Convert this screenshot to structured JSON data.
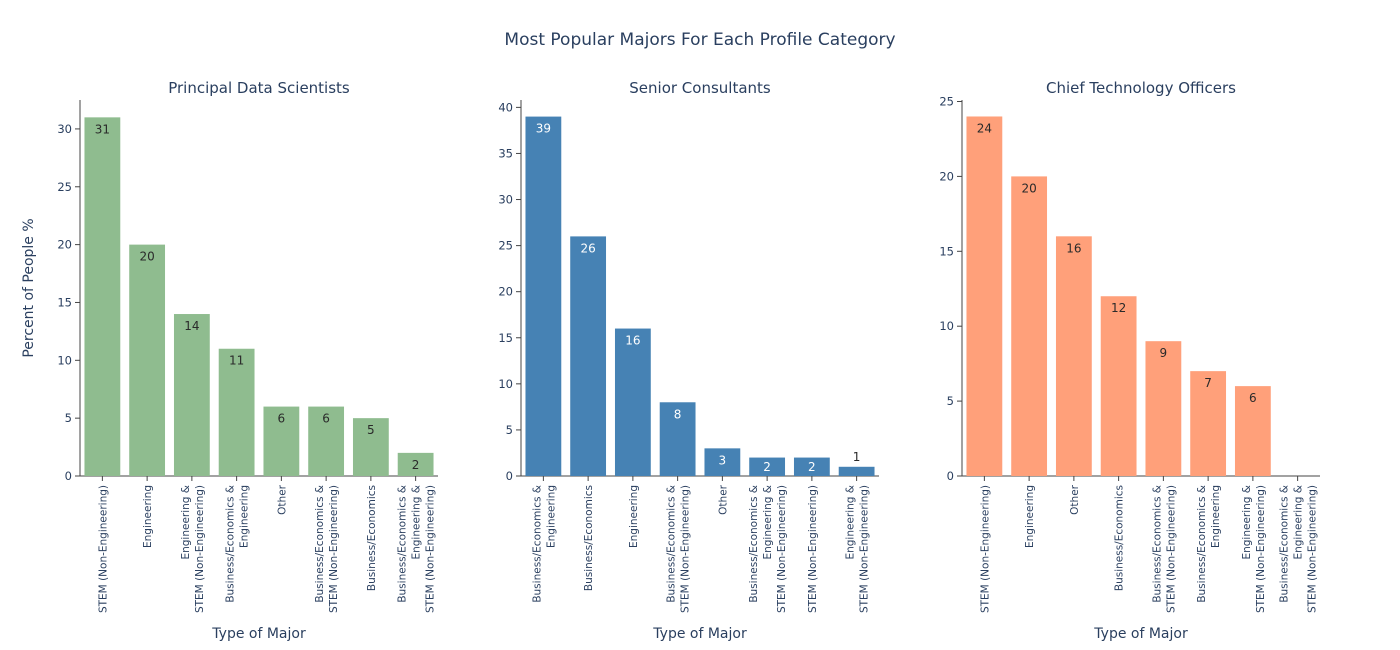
{
  "figure_title": "Most Popular Majors For Each Profile Category",
  "y_axis_label": "Percent of People %",
  "chart_data": [
    {
      "type": "bar",
      "title": "Principal Data Scientists",
      "xlabel": "Type of Major",
      "ylabel": "Percent of People %",
      "color": "#8fbc8f",
      "label_color": "#2a2a2a",
      "ylim": [
        0,
        32.5
      ],
      "yticks": [
        0,
        5,
        10,
        15,
        20,
        25,
        30
      ],
      "categories": [
        [
          "STEM (Non-Engineering)"
        ],
        [
          "Engineering"
        ],
        [
          "Engineering &",
          "STEM (Non-Engineering)"
        ],
        [
          "Business/Economics &",
          "Engineering"
        ],
        [
          "Other"
        ],
        [
          "Business/Economics &",
          "STEM (Non-Engineering)"
        ],
        [
          "Business/Economics"
        ],
        [
          "Business/Economics &",
          "Engineering &",
          "STEM (Non-Engineering)"
        ]
      ],
      "values": [
        31,
        20,
        14,
        11,
        6,
        6,
        5,
        2
      ],
      "labels": [
        "31",
        "20",
        "14",
        "11",
        "6",
        "6",
        "5",
        "2"
      ]
    },
    {
      "type": "bar",
      "title": "Senior Consultants",
      "xlabel": "Type of Major",
      "ylabel": "",
      "color": "#4682b4",
      "label_color": "#ffffff",
      "ylim": [
        0,
        40.8
      ],
      "yticks": [
        0,
        5,
        10,
        15,
        20,
        25,
        30,
        35,
        40
      ],
      "categories": [
        [
          "Business/Economics &",
          "Engineering"
        ],
        [
          "Business/Economics"
        ],
        [
          "Engineering"
        ],
        [
          "Business/Economics &",
          "STEM (Non-Engineering)"
        ],
        [
          "Other"
        ],
        [
          "Business/Economics &",
          "Engineering &",
          "STEM (Non-Engineering)"
        ],
        [
          "STEM (Non-Engineering)"
        ],
        [
          "Engineering &",
          "STEM (Non-Engineering)"
        ]
      ],
      "values": [
        39,
        26,
        16,
        8,
        3,
        2,
        2,
        1
      ],
      "labels": [
        "39",
        "26",
        "16",
        "8",
        "3",
        "2",
        "2",
        "1"
      ]
    },
    {
      "type": "bar",
      "title": "Chief Technology Officers",
      "xlabel": "Type of Major",
      "ylabel": "",
      "color": "#ffa07a",
      "label_color": "#2a2a2a",
      "ylim": [
        0,
        25.1
      ],
      "yticks": [
        0,
        5,
        10,
        15,
        20,
        25
      ],
      "categories": [
        [
          "STEM (Non-Engineering)"
        ],
        [
          "Engineering"
        ],
        [
          "Other"
        ],
        [
          "Business/Economics"
        ],
        [
          "Business/Economics &",
          "STEM (Non-Engineering)"
        ],
        [
          "Business/Economics &",
          "Engineering"
        ],
        [
          "Engineering &",
          "STEM (Non-Engineering)"
        ],
        [
          "Business/Economics &",
          "Engineering &",
          "STEM (Non-Engineering)"
        ]
      ],
      "values": [
        24,
        20,
        16,
        12,
        9,
        7,
        6,
        0
      ],
      "labels": [
        "24",
        "20",
        "16",
        "12",
        "9",
        "7",
        "6",
        ""
      ]
    }
  ]
}
